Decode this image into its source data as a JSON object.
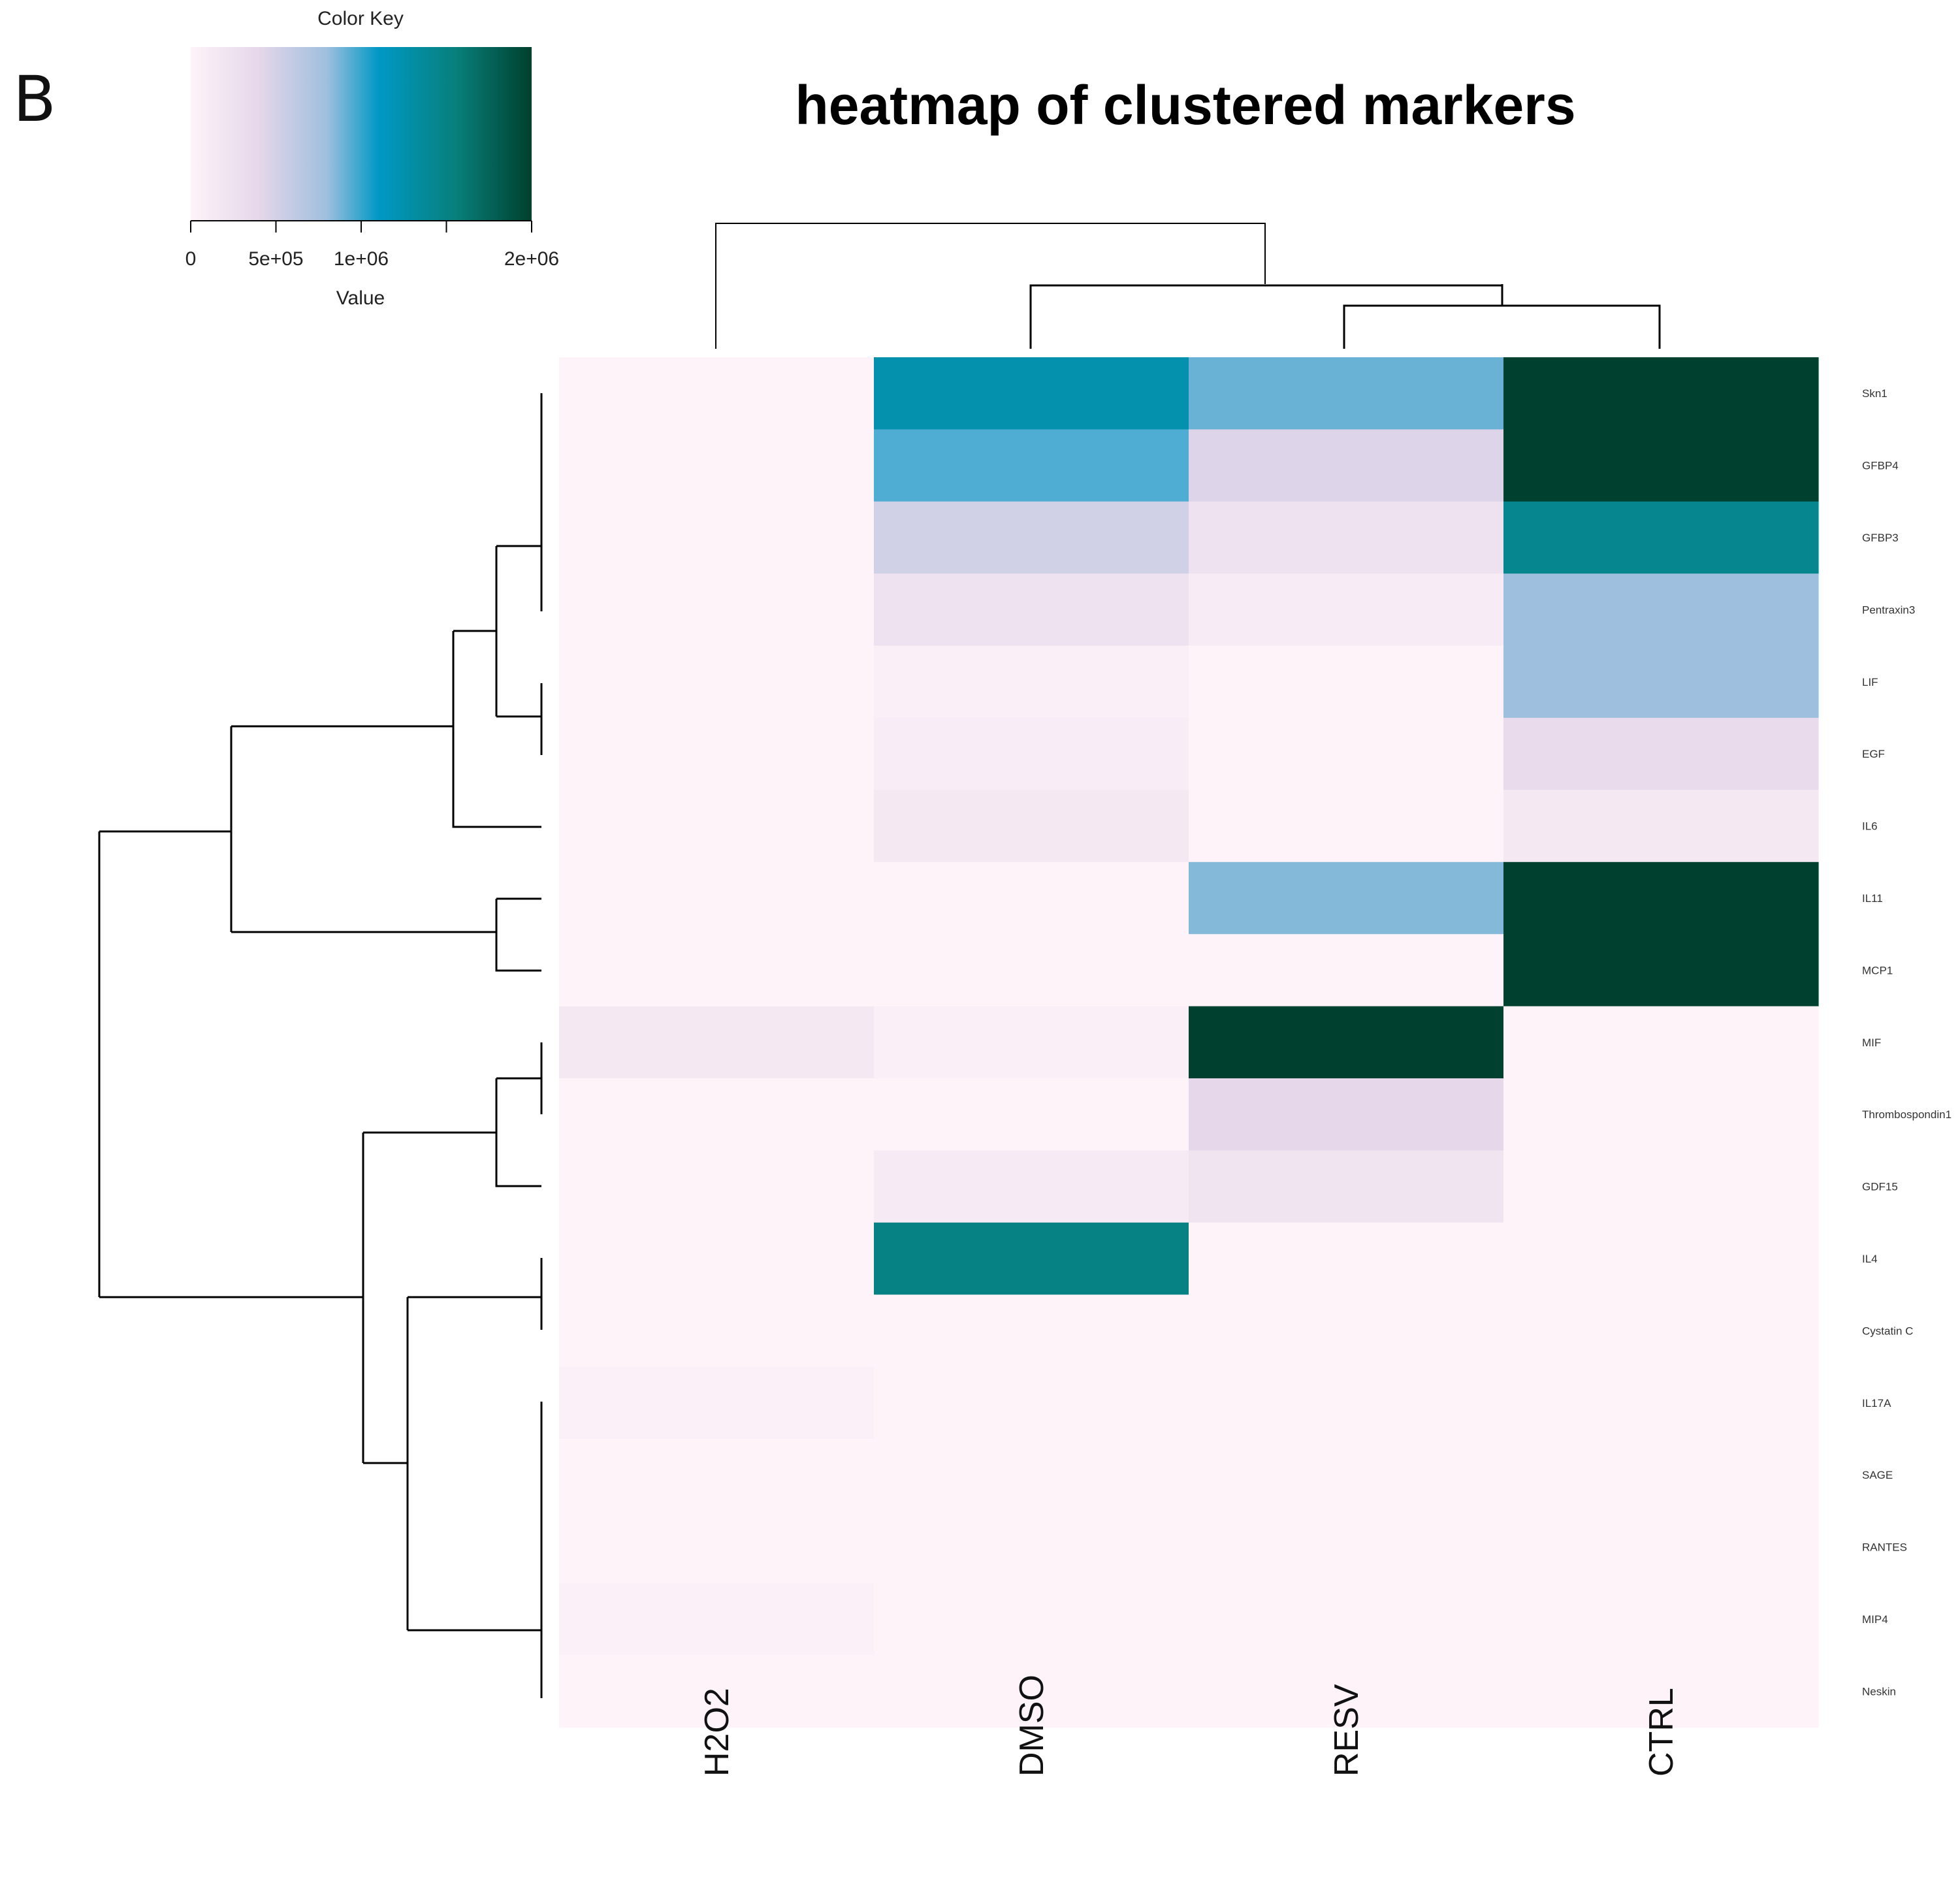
{
  "panel_label": "B",
  "chart_data": {
    "type": "heatmap",
    "title": "heatmap of clustered markers",
    "columns": [
      "H2O2",
      "DMSO",
      "RESV",
      "CTRL"
    ],
    "rows": [
      "Skn1",
      "GFBP4",
      "GFBP3",
      "Pentraxin3",
      "LIF",
      "EGF",
      "IL6",
      "IL11",
      "MCP1",
      "MIF",
      "Thrombospondin1",
      "GDF15",
      "IL4",
      "Cystatin C",
      "IL17A",
      "SAGE",
      "RANTES",
      "MIP4",
      "Neskin"
    ],
    "values": [
      [
        0,
        1250000,
        900000,
        2000000
      ],
      [
        0,
        950000,
        450000,
        2000000
      ],
      [
        0,
        520000,
        240000,
        1430000
      ],
      [
        0,
        240000,
        100000,
        800000
      ],
      [
        0,
        60000,
        0,
        800000
      ],
      [
        0,
        80000,
        0,
        350000
      ],
      [
        0,
        150000,
        0,
        150000
      ],
      [
        0,
        0,
        850000,
        2000000
      ],
      [
        0,
        0,
        0,
        2000000
      ],
      [
        150000,
        60000,
        2000000,
        0
      ],
      [
        0,
        0,
        400000,
        0
      ],
      [
        0,
        120000,
        220000,
        0
      ],
      [
        0,
        1500000,
        0,
        0
      ],
      [
        0,
        0,
        0,
        0
      ],
      [
        40000,
        0,
        0,
        0
      ],
      [
        0,
        0,
        0,
        0
      ],
      [
        0,
        0,
        0,
        0
      ],
      [
        40000,
        0,
        0,
        0
      ],
      [
        0,
        0,
        0,
        0
      ]
    ],
    "color_key": {
      "title": "Color Key",
      "xlabel": "Value",
      "ticks": [
        "0",
        "5e+05",
        "1e+06",
        "2e+06"
      ],
      "tick_values": [
        0,
        500000,
        1000000,
        2000000
      ],
      "range": [
        0,
        2000000
      ],
      "colors": [
        "#fdf3f9",
        "#e6d7ea",
        "#9ebfde",
        "#0099c6",
        "#087f7a",
        "#00402e"
      ],
      "stops": [
        0,
        0.2,
        0.4,
        0.55,
        0.78,
        1
      ]
    }
  }
}
